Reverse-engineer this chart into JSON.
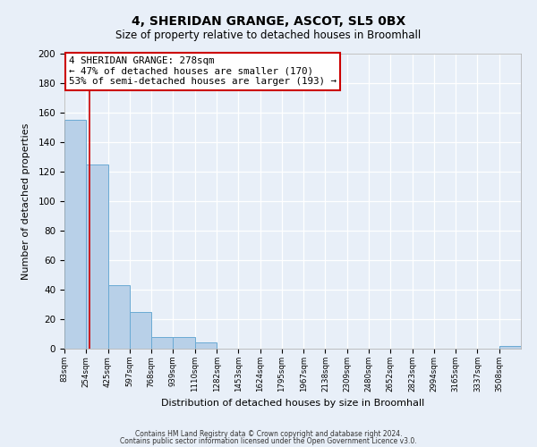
{
  "title": "4, SHERIDAN GRANGE, ASCOT, SL5 0BX",
  "subtitle": "Size of property relative to detached houses in Broomhall",
  "xlabel": "Distribution of detached houses by size in Broomhall",
  "ylabel": "Number of detached properties",
  "bar_labels": [
    "83sqm",
    "254sqm",
    "425sqm",
    "597sqm",
    "768sqm",
    "939sqm",
    "1110sqm",
    "1282sqm",
    "1453sqm",
    "1624sqm",
    "1795sqm",
    "1967sqm",
    "2138sqm",
    "2309sqm",
    "2480sqm",
    "2652sqm",
    "2823sqm",
    "2994sqm",
    "3165sqm",
    "3337sqm",
    "3508sqm"
  ],
  "bar_heights": [
    155,
    125,
    43,
    25,
    8,
    8,
    4,
    0,
    0,
    0,
    0,
    0,
    0,
    0,
    0,
    0,
    0,
    0,
    0,
    0,
    2
  ],
  "bar_color": "#b8d0e8",
  "bar_edge_color": "#6aaad4",
  "bg_color": "#e8eff8",
  "grid_color": "#ffffff",
  "property_line_x": 278,
  "bin_edges": [
    83,
    254,
    425,
    597,
    768,
    939,
    1110,
    1282,
    1453,
    1624,
    1795,
    1967,
    2138,
    2309,
    2480,
    2652,
    2823,
    2994,
    3165,
    3337,
    3508,
    3679
  ],
  "annotation_title": "4 SHERIDAN GRANGE: 278sqm",
  "annotation_line1": "← 47% of detached houses are smaller (170)",
  "annotation_line2": "53% of semi-detached houses are larger (193) →",
  "annotation_box_color": "#ffffff",
  "annotation_box_edge_color": "#cc0000",
  "vline_color": "#cc0000",
  "ylim": [
    0,
    200
  ],
  "yticks": [
    0,
    20,
    40,
    60,
    80,
    100,
    120,
    140,
    160,
    180,
    200
  ],
  "footer1": "Contains HM Land Registry data © Crown copyright and database right 2024.",
  "footer2": "Contains public sector information licensed under the Open Government Licence v3.0."
}
